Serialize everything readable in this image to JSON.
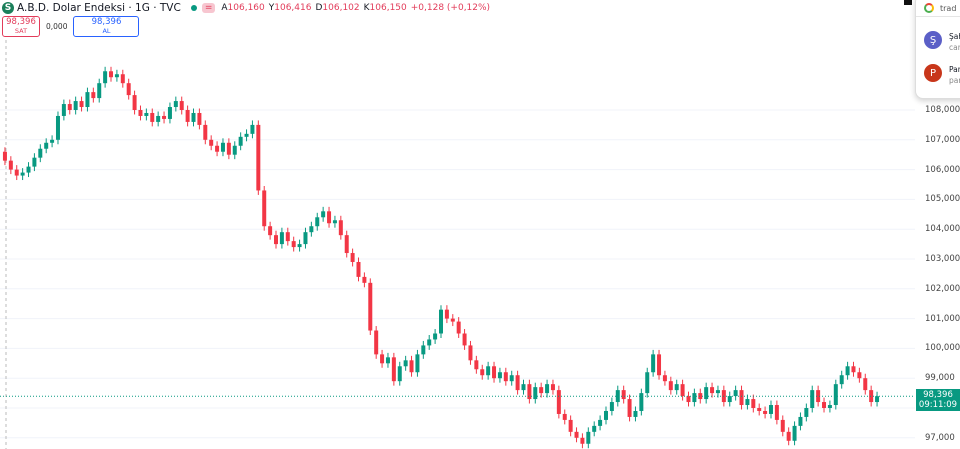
{
  "header": {
    "symbol_icon": "S",
    "title": "A.B.D. Dolar Endeksi · 1G · TVC",
    "status_dot_color": "#089981",
    "equal_badge": "=",
    "ohlc": [
      {
        "k": "A",
        "v": "106,160"
      },
      {
        "k": "Y",
        "v": "106,416"
      },
      {
        "k": "D",
        "v": "106,102"
      },
      {
        "k": "K",
        "v": "106,150"
      }
    ],
    "change": "+0,128 (+0,12%)"
  },
  "trade": {
    "sell_price": "98,396",
    "sell_label": "SAT",
    "spread": "0,000",
    "buy_price": "98,396",
    "buy_label": "AL"
  },
  "price_axis": {
    "ticks": [
      "108,000",
      "107,000",
      "106,000",
      "105,000",
      "104,000",
      "103,000",
      "102,000",
      "101,000",
      "100,000",
      "99,000",
      "97,000"
    ],
    "last_price": "98,396",
    "countdown": "09:11:09"
  },
  "popup": {
    "header": "trad",
    "items": [
      {
        "avatar": "Ş",
        "color": "#5b5fc7",
        "title": "Şah",
        "sub": "car"
      },
      {
        "avatar": "P",
        "color": "#c8361a",
        "title": "Par",
        "sub": "par"
      }
    ]
  },
  "colors": {
    "up": "#089981",
    "down": "#f23645"
  },
  "chart_data": {
    "type": "candlestick",
    "ylim": [
      96.5,
      111.7
    ],
    "y_ticks": [
      108,
      107,
      106,
      105,
      104,
      103,
      102,
      101,
      100,
      99,
      97
    ],
    "last": 98.396,
    "first_open": 106.6,
    "closes": [
      106.3,
      106.0,
      105.8,
      105.9,
      106.1,
      106.4,
      106.7,
      106.9,
      107.0,
      107.8,
      108.2,
      108.0,
      108.3,
      108.1,
      108.6,
      108.4,
      108.9,
      109.3,
      109.1,
      109.2,
      108.9,
      108.5,
      108.0,
      107.8,
      107.9,
      107.6,
      107.8,
      107.7,
      108.1,
      108.3,
      108.0,
      107.6,
      107.9,
      107.5,
      107.0,
      106.8,
      106.6,
      106.9,
      106.5,
      106.8,
      107.1,
      107.2,
      107.5,
      105.3,
      104.1,
      103.8,
      103.5,
      103.9,
      103.6,
      103.4,
      103.5,
      103.9,
      104.1,
      104.4,
      104.6,
      104.2,
      104.3,
      103.8,
      103.2,
      102.9,
      102.4,
      102.2,
      100.6,
      99.8,
      99.5,
      99.7,
      98.9,
      99.4,
      99.6,
      99.2,
      99.8,
      100.1,
      100.3,
      100.5,
      101.3,
      101.0,
      100.9,
      100.5,
      100.1,
      99.6,
      99.3,
      99.1,
      99.4,
      99.0,
      99.2,
      98.9,
      99.1,
      98.6,
      98.8,
      98.3,
      98.7,
      98.5,
      98.8,
      98.6,
      97.8,
      97.6,
      97.2,
      97.0,
      96.8,
      97.2,
      97.4,
      97.6,
      97.9,
      98.2,
      98.6,
      98.3,
      97.7,
      97.9,
      98.5,
      99.2,
      99.8,
      99.1,
      98.9,
      98.6,
      98.8,
      98.4,
      98.2,
      98.5,
      98.3,
      98.7,
      98.5,
      98.6,
      98.2,
      98.4,
      98.6,
      98.1,
      98.3,
      98.0,
      97.9,
      97.8,
      98.1,
      97.6,
      97.2,
      96.9,
      97.4,
      97.7,
      98.0,
      98.6,
      98.2,
      98.0,
      98.1,
      98.8,
      99.1,
      99.4,
      99.2,
      99.0,
      98.6,
      98.2,
      98.396
    ]
  }
}
